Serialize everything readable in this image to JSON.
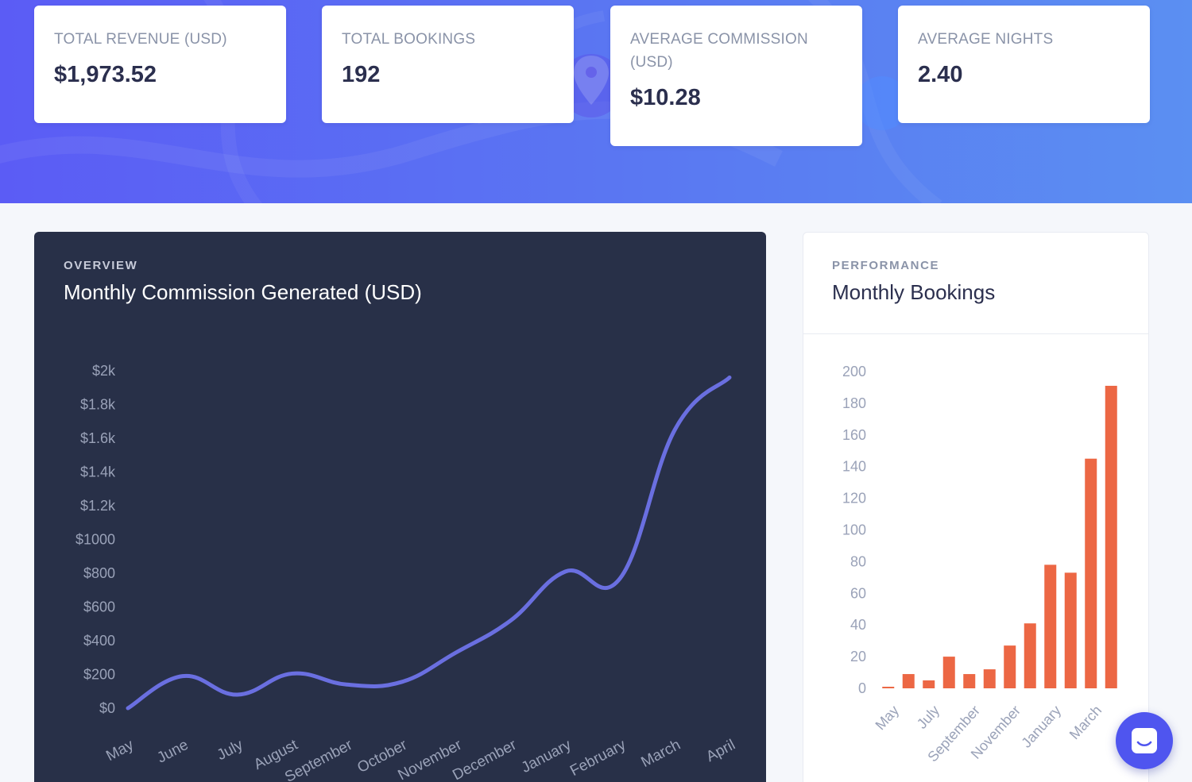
{
  "stats": [
    {
      "label": "TOTAL REVENUE (USD)",
      "value": "$1,973.52"
    },
    {
      "label": "TOTAL BOOKINGS",
      "value": "192"
    },
    {
      "label": "AVERAGE COMMISSION (USD)",
      "value": "$10.28"
    },
    {
      "label": "AVERAGE NIGHTS",
      "value": "2.40"
    }
  ],
  "commission_panel": {
    "eyebrow": "OVERVIEW",
    "title": "Monthly Commission Generated (USD)"
  },
  "bookings_panel": {
    "eyebrow": "PERFORMANCE",
    "title": "Monthly Bookings"
  },
  "colors": {
    "line": "#6a6fe0",
    "bar": "#ec6744",
    "dark_panel": "#283048",
    "chat_button": "#4f55ef"
  },
  "icons": {
    "chat": "intercom-chat-icon",
    "map_pin": "map-pin-icon"
  },
  "chart_data": [
    {
      "type": "line",
      "x": [
        "May",
        "June",
        "July",
        "August",
        "September",
        "October",
        "November",
        "December",
        "January",
        "February",
        "March",
        "April"
      ],
      "series": [
        {
          "values": [
            0,
            190,
            80,
            205,
            140,
            155,
            330,
            520,
            810,
            770,
            1650,
            1960
          ]
        }
      ],
      "ylim": [
        0,
        2000
      ],
      "y_ticks": [
        0,
        200,
        400,
        600,
        800,
        1000,
        1200,
        1400,
        1600,
        1800,
        2000
      ],
      "y_tick_labels": [
        "$0",
        "$200",
        "$400",
        "$600",
        "$800",
        "$1000",
        "$1.2k",
        "$1.4k",
        "$1.6k",
        "$1.8k",
        "$2k"
      ],
      "grid": false,
      "title": "Monthly Commission Generated (USD)"
    },
    {
      "type": "bar",
      "categories": [
        "May",
        "June",
        "July",
        "August",
        "September",
        "October",
        "November",
        "December",
        "January",
        "February",
        "March",
        "April"
      ],
      "x_tick_labels": [
        "May",
        "July",
        "September",
        "November",
        "January",
        "March"
      ],
      "values": [
        1,
        9,
        5,
        20,
        9,
        12,
        27,
        41,
        78,
        73,
        145,
        191
      ],
      "ylim": [
        0,
        200
      ],
      "y_ticks": [
        0,
        20,
        40,
        60,
        80,
        100,
        120,
        140,
        160,
        180,
        200
      ],
      "grid": false,
      "title": "Monthly Bookings"
    }
  ]
}
